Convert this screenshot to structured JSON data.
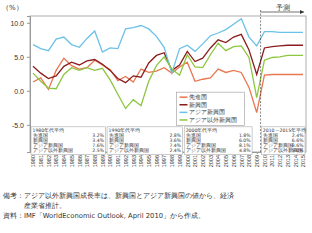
{
  "chart_data": {
    "type": "line",
    "y_label": "（%）",
    "categories": [
      "1980",
      "1981",
      "1982",
      "1983",
      "1984",
      "1985",
      "1986",
      "1987",
      "1988",
      "1989",
      "1990",
      "1991",
      "1992",
      "1993",
      "1994",
      "1995",
      "1996",
      "1997",
      "1998",
      "1999",
      "2000",
      "2001",
      "2002",
      "2003",
      "2004",
      "2005",
      "2006",
      "2007",
      "2008",
      "2009",
      "2010",
      "2011",
      "2012",
      "2013",
      "2014",
      "2015"
    ],
    "series": [
      {
        "name": "先進国",
        "color": "#e9774f",
        "values": [
          1.3,
          1.9,
          0.2,
          3.0,
          4.8,
          3.7,
          3.2,
          3.4,
          4.5,
          3.8,
          3.1,
          1.5,
          2.1,
          1.3,
          3.2,
          2.7,
          2.9,
          3.4,
          2.6,
          3.5,
          4.2,
          1.4,
          1.7,
          1.9,
          3.2,
          2.7,
          3.0,
          2.7,
          0.5,
          -3.2,
          2.3,
          2.4,
          2.4,
          2.4,
          2.4,
          2.4
        ]
      },
      {
        "name": "新興国",
        "color": "#8b1c1c",
        "values": [
          3.6,
          2.6,
          1.8,
          2.2,
          3.6,
          4.2,
          3.8,
          4.4,
          4.6,
          3.9,
          3.0,
          1.8,
          1.2,
          2.2,
          2.0,
          4.1,
          5.2,
          5.6,
          3.0,
          3.8,
          5.8,
          4.3,
          4.8,
          6.3,
          7.5,
          7.1,
          7.9,
          8.3,
          6.0,
          2.4,
          6.3,
          6.5,
          6.6,
          6.7,
          6.7,
          6.7
        ]
      },
      {
        "name": "アジア新興国",
        "color": "#6cc1e8",
        "values": [
          6.8,
          6.2,
          5.9,
          7.6,
          7.9,
          6.8,
          6.4,
          7.7,
          8.8,
          5.7,
          6.3,
          6.2,
          9.1,
          9.3,
          9.6,
          9.1,
          8.0,
          6.4,
          2.6,
          6.2,
          6.7,
          5.8,
          6.9,
          8.1,
          8.5,
          9.0,
          9.8,
          10.6,
          7.9,
          6.6,
          8.7,
          8.7,
          8.6,
          8.6,
          8.6,
          8.6
        ]
      },
      {
        "name": "アジア以外新興国",
        "color": "#8dc63f",
        "values": [
          2.6,
          1.4,
          0.4,
          0.3,
          2.4,
          3.4,
          3.0,
          3.4,
          3.0,
          3.3,
          1.6,
          -0.5,
          -2.6,
          -1.3,
          -2.2,
          1.4,
          3.7,
          5.0,
          3.2,
          2.3,
          5.3,
          3.5,
          3.4,
          5.3,
          7.0,
          5.9,
          6.5,
          6.6,
          4.9,
          -1.0,
          4.5,
          4.9,
          5.0,
          5.2,
          5.2,
          5.2
        ]
      }
    ],
    "ylim": [
      -9,
      11
    ],
    "yticks": [
      {
        "value": -5,
        "label": "-5.0"
      },
      {
        "value": 0,
        "label": "0.0"
      },
      {
        "value": 5,
        "label": "5.0"
      },
      {
        "value": 10,
        "label": "10.0"
      }
    ],
    "grid": false,
    "annotations": [
      {
        "text": "予測",
        "x": "2010"
      }
    ],
    "period_averages": [
      {
        "title": "1980年代平均",
        "items": [
          {
            "name": "先進国",
            "value": "3.2%"
          },
          {
            "name": "新興国",
            "value": "3.4%"
          },
          {
            "name": "アジア新興国",
            "value": "7.6%"
          },
          {
            "name": "アジア以外新興国",
            "value": "2.5%"
          }
        ]
      },
      {
        "title": "1990年代平均",
        "items": [
          {
            "name": "先進国",
            "value": "2.8%"
          },
          {
            "name": "新興国",
            "value": "3.6%"
          },
          {
            "name": "アジア新興国",
            "value": "7.4%"
          },
          {
            "name": "アジア以外新興国",
            "value": "2.4%"
          }
        ]
      },
      {
        "title": "2000年代平均",
        "items": [
          {
            "name": "先進国",
            "value": "1.8%"
          },
          {
            "name": "新興国",
            "value": "6.0%"
          },
          {
            "name": "アジア新興国",
            "value": "8.1%"
          },
          {
            "name": "アジア以外新興国",
            "value": "4.8%"
          }
        ]
      },
      {
        "title": "2010～2015年平均",
        "items": [
          {
            "name": "先進国",
            "value": "2.4%"
          },
          {
            "name": "新興国",
            "value": "6.6%"
          },
          {
            "name": "アジア新興国",
            "value": "8.6%"
          },
          {
            "name": "アジア以外新興国",
            "value": "5.0%"
          }
        ]
      }
    ],
    "notes": [
      "備考：アジア以外新興国成長率は、新興国とアジア新興国の値から、経済",
      "　　　産業省推計。",
      "資料：IMF「WorldEconomic Outlook, April 2010」から作成。"
    ]
  }
}
